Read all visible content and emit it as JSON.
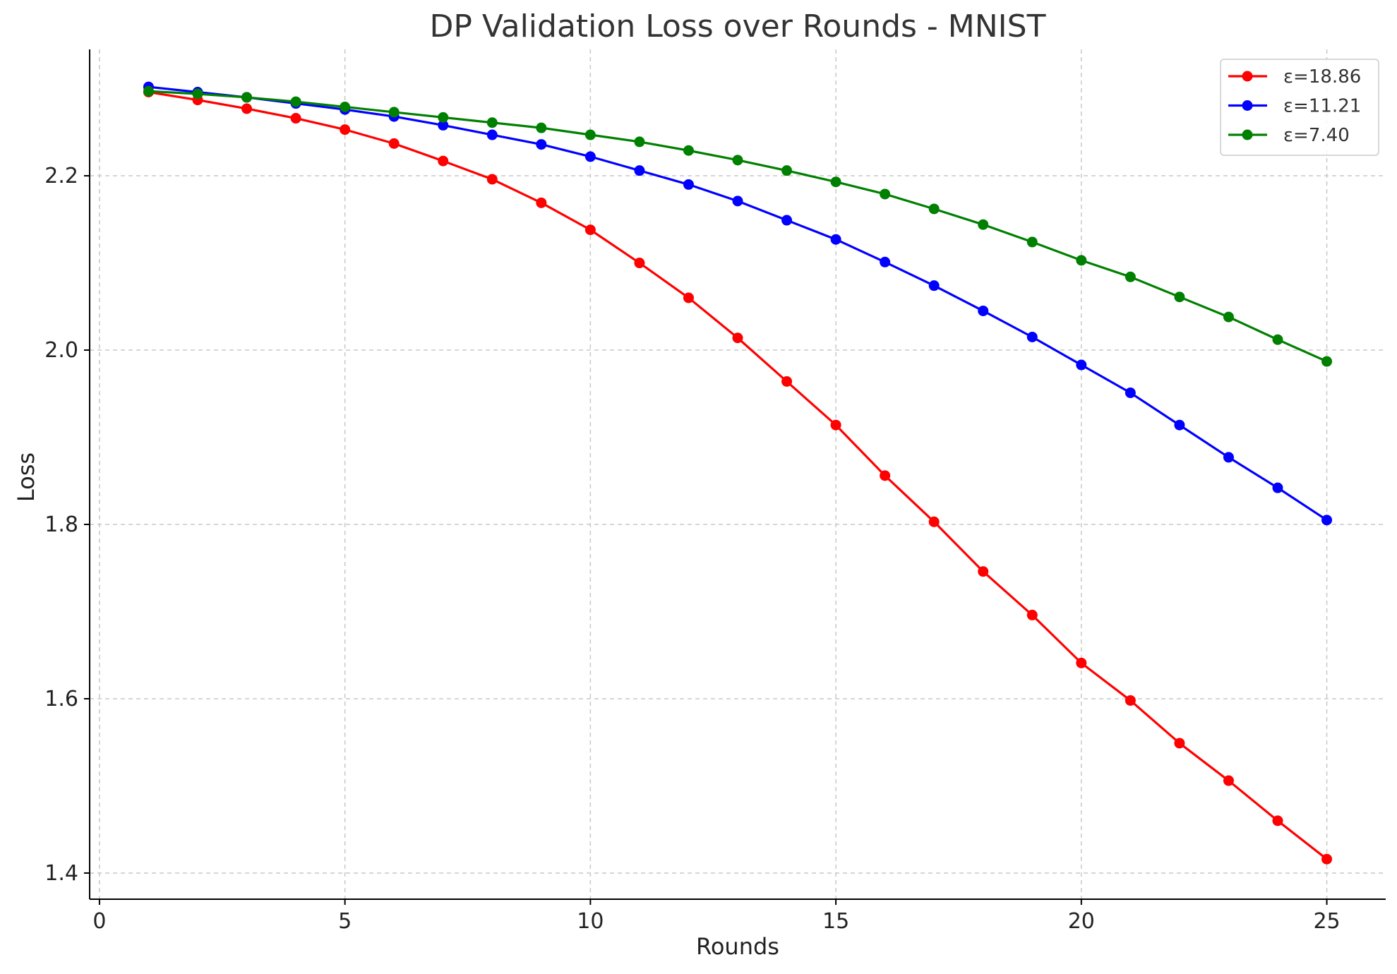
{
  "chart_data": {
    "type": "line",
    "title": "DP Validation Loss over Rounds - MNIST",
    "xlabel": "Rounds",
    "ylabel": "Loss",
    "xlim": [
      -0.2,
      26.2
    ],
    "ylim": [
      1.37,
      2.345
    ],
    "xticks": [
      0,
      5,
      10,
      15,
      20,
      25
    ],
    "xtick_labels": [
      "0",
      "5",
      "10",
      "15",
      "20",
      "25"
    ],
    "yticks": [
      1.4,
      1.6,
      1.8,
      2.0,
      2.2
    ],
    "ytick_labels": [
      "1.4",
      "1.6",
      "1.8",
      "2.0",
      "2.2"
    ],
    "grid": true,
    "legend_position": "top-right",
    "x": [
      1,
      2,
      3,
      4,
      5,
      6,
      7,
      8,
      9,
      10,
      11,
      12,
      13,
      14,
      15,
      16,
      17,
      18,
      19,
      20,
      21,
      22,
      23,
      24,
      25
    ],
    "series": [
      {
        "name": "ε=18.86",
        "color": "#ff0000",
        "values": [
          2.296,
          2.287,
          2.277,
          2.266,
          2.253,
          2.237,
          2.217,
          2.196,
          2.169,
          2.138,
          2.1,
          2.06,
          2.014,
          1.964,
          1.914,
          1.856,
          1.803,
          1.746,
          1.696,
          1.641,
          1.598,
          1.549,
          1.506,
          1.46,
          1.416
        ]
      },
      {
        "name": "ε=11.21",
        "color": "#0000ff",
        "values": [
          2.302,
          2.296,
          2.29,
          2.283,
          2.276,
          2.268,
          2.258,
          2.247,
          2.236,
          2.222,
          2.206,
          2.19,
          2.171,
          2.149,
          2.127,
          2.101,
          2.074,
          2.045,
          2.015,
          1.983,
          1.951,
          1.914,
          1.877,
          1.842,
          1.805
        ]
      },
      {
        "name": "ε=7.40",
        "color": "#008000",
        "values": [
          2.297,
          2.294,
          2.29,
          2.285,
          2.279,
          2.273,
          2.267,
          2.261,
          2.255,
          2.247,
          2.239,
          2.229,
          2.218,
          2.206,
          2.193,
          2.179,
          2.162,
          2.144,
          2.124,
          2.103,
          2.084,
          2.061,
          2.038,
          2.012,
          1.987
        ]
      }
    ]
  }
}
